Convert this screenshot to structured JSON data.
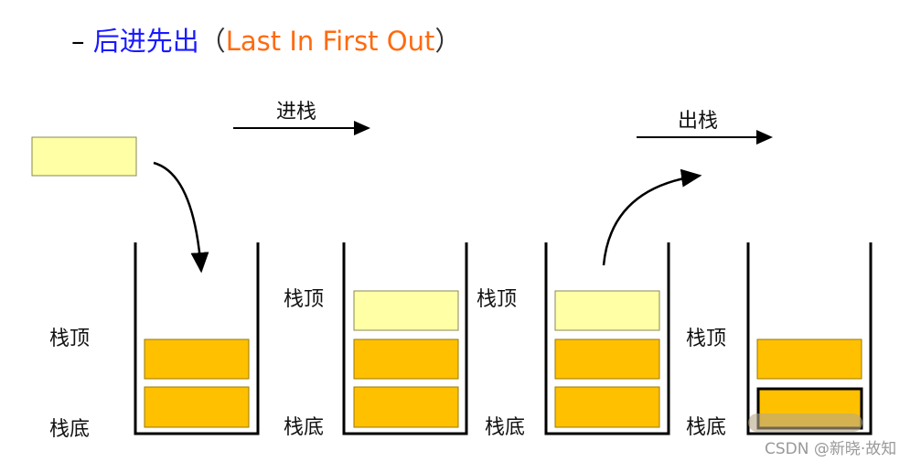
{
  "title": {
    "dash": "–",
    "cn": "后进先出",
    "open": "（",
    "en": "Last In First Out",
    "close": "）"
  },
  "labels": {
    "push": "进栈",
    "pop": "出栈",
    "top": "栈顶",
    "bottom": "栈底"
  },
  "watermark": "CSDN @新晓·故知",
  "colors": {
    "cn_title": "#1a1aff",
    "en_title": "#ff6a0e",
    "pushed_block": "#ffffa6",
    "stack_block": "#ffc000",
    "block_border": "#9a7a00"
  }
}
